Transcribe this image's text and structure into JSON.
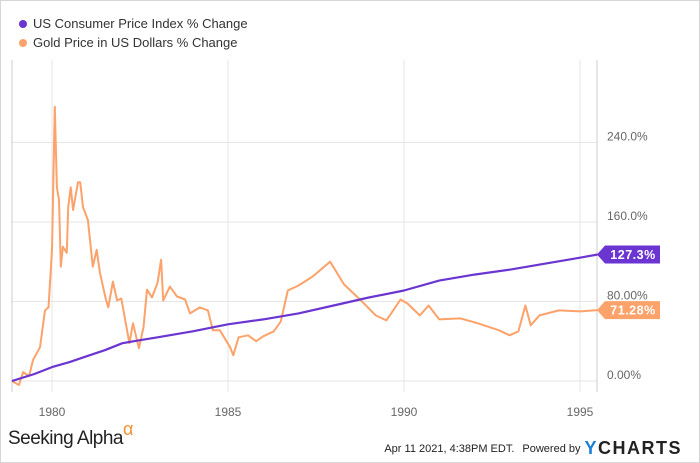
{
  "chart_data": {
    "type": "line",
    "title": "",
    "xlabel": "",
    "ylabel": "",
    "xlim": [
      1978.86,
      1995.55
    ],
    "ylim": [
      -15,
      290
    ],
    "grid": true,
    "legend_position": "top-left",
    "x_ticks": [
      {
        "value": 1980,
        "label": "1980"
      },
      {
        "value": 1985,
        "label": "1985"
      },
      {
        "value": 1990,
        "label": "1990"
      },
      {
        "value": 1995,
        "label": "1995"
      }
    ],
    "y_ticks": [
      {
        "value": 0,
        "label": "0.00%"
      },
      {
        "value": 80,
        "label": "80.00%"
      },
      {
        "value": 160,
        "label": "160.0%"
      },
      {
        "value": 240,
        "label": "240.0%"
      }
    ],
    "series": [
      {
        "name": "US Consumer Price Index % Change",
        "color": "#6a35d1",
        "end_label": "127.3%",
        "x": [
          1978.86,
          1979.5,
          1980,
          1980.5,
          1981,
          1981.5,
          1982,
          1982.5,
          1983,
          1984,
          1985,
          1986,
          1987,
          1988,
          1989,
          1990,
          1991,
          1992,
          1993,
          1994,
          1995,
          1995.5
        ],
        "y": [
          0,
          7,
          14,
          19,
          25,
          31,
          38,
          41,
          44,
          50,
          57,
          62,
          68,
          76,
          84,
          91,
          101,
          107,
          112,
          118,
          124,
          127.3
        ]
      },
      {
        "name": "Gold Price in US Dollars % Change",
        "color": "#fca26a",
        "end_label": "71.28%",
        "x": [
          1978.86,
          1979.06,
          1979.18,
          1979.35,
          1979.46,
          1979.66,
          1979.8,
          1979.9,
          1980.0,
          1980.08,
          1980.14,
          1980.2,
          1980.25,
          1980.31,
          1980.42,
          1980.46,
          1980.53,
          1980.6,
          1980.74,
          1980.8,
          1980.88,
          1981.02,
          1981.16,
          1981.27,
          1981.36,
          1981.53,
          1981.6,
          1981.73,
          1981.85,
          1981.97,
          1982.2,
          1982.3,
          1982.47,
          1982.6,
          1982.7,
          1982.84,
          1983.0,
          1983.1,
          1983.16,
          1983.35,
          1983.55,
          1983.78,
          1983.92,
          1984.2,
          1984.43,
          1984.57,
          1984.77,
          1985.06,
          1985.15,
          1985.3,
          1985.57,
          1985.8,
          1986.0,
          1986.3,
          1986.5,
          1986.7,
          1987.0,
          1987.4,
          1987.9,
          1988.3,
          1988.75,
          1989.2,
          1989.5,
          1989.9,
          1990.1,
          1990.45,
          1990.7,
          1991.0,
          1991.6,
          1992.1,
          1992.7,
          1993.0,
          1993.25,
          1993.45,
          1993.6,
          1993.85,
          1994.4,
          1995.0,
          1995.5
        ],
        "y": [
          0,
          -4,
          9,
          5,
          21,
          34,
          71,
          74,
          132,
          276,
          195,
          182,
          115,
          135,
          129,
          175,
          195,
          172,
          200,
          200,
          175,
          162,
          115,
          132,
          109,
          82,
          74,
          100,
          81,
          83,
          38,
          58,
          33,
          54,
          92,
          84,
          99,
          122,
          81,
          95,
          85,
          82,
          68,
          74,
          71,
          51,
          51,
          34,
          26,
          44,
          46,
          40,
          45,
          50,
          60,
          91,
          96,
          105,
          120,
          97,
          82,
          66,
          61,
          82,
          78,
          66,
          76,
          62,
          63,
          58,
          51,
          46,
          50,
          76,
          56,
          66,
          71,
          70,
          71.28
        ]
      }
    ]
  },
  "footer": {
    "brand": "Seeking Alpha",
    "brand_mark": "α",
    "timestamp": "Apr 11 2021, 4:38PM EDT.",
    "powered_by": "Powered by",
    "ycharts_y": "Y",
    "ycharts_rest": "CHARTS"
  }
}
